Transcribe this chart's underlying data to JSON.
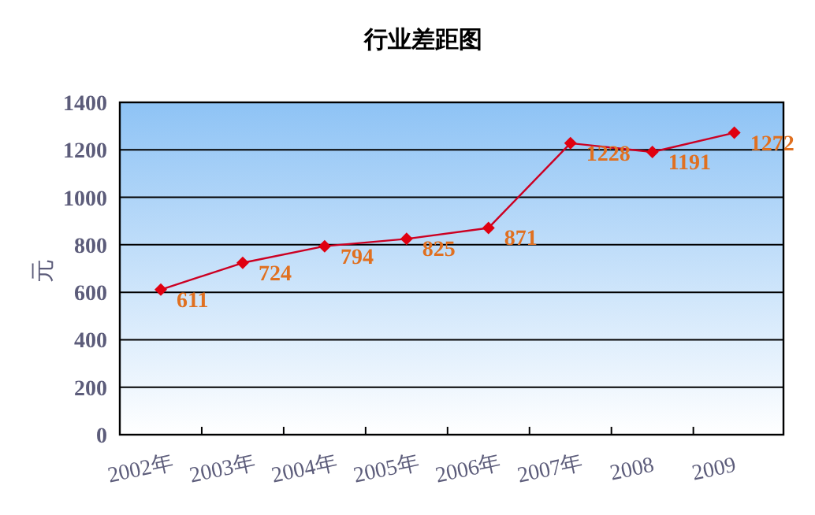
{
  "chart_data": {
    "type": "line",
    "title": "行业差距图",
    "ylabel": "元",
    "categories": [
      "2002年",
      "2003年",
      "2004年",
      "2005年",
      "2006年",
      "2007年",
      "2008",
      "2009"
    ],
    "series": [
      {
        "color": "#cc0022",
        "values": [
          611,
          724,
          794,
          825,
          871,
          1228,
          1191,
          1272
        ]
      }
    ],
    "ylim": [
      0,
      1400
    ],
    "yticks": [
      0,
      200,
      400,
      600,
      800,
      1000,
      1200,
      1400
    ],
    "grid": "y",
    "data_labels": true,
    "marker": "diamond",
    "line_style": "solid"
  }
}
